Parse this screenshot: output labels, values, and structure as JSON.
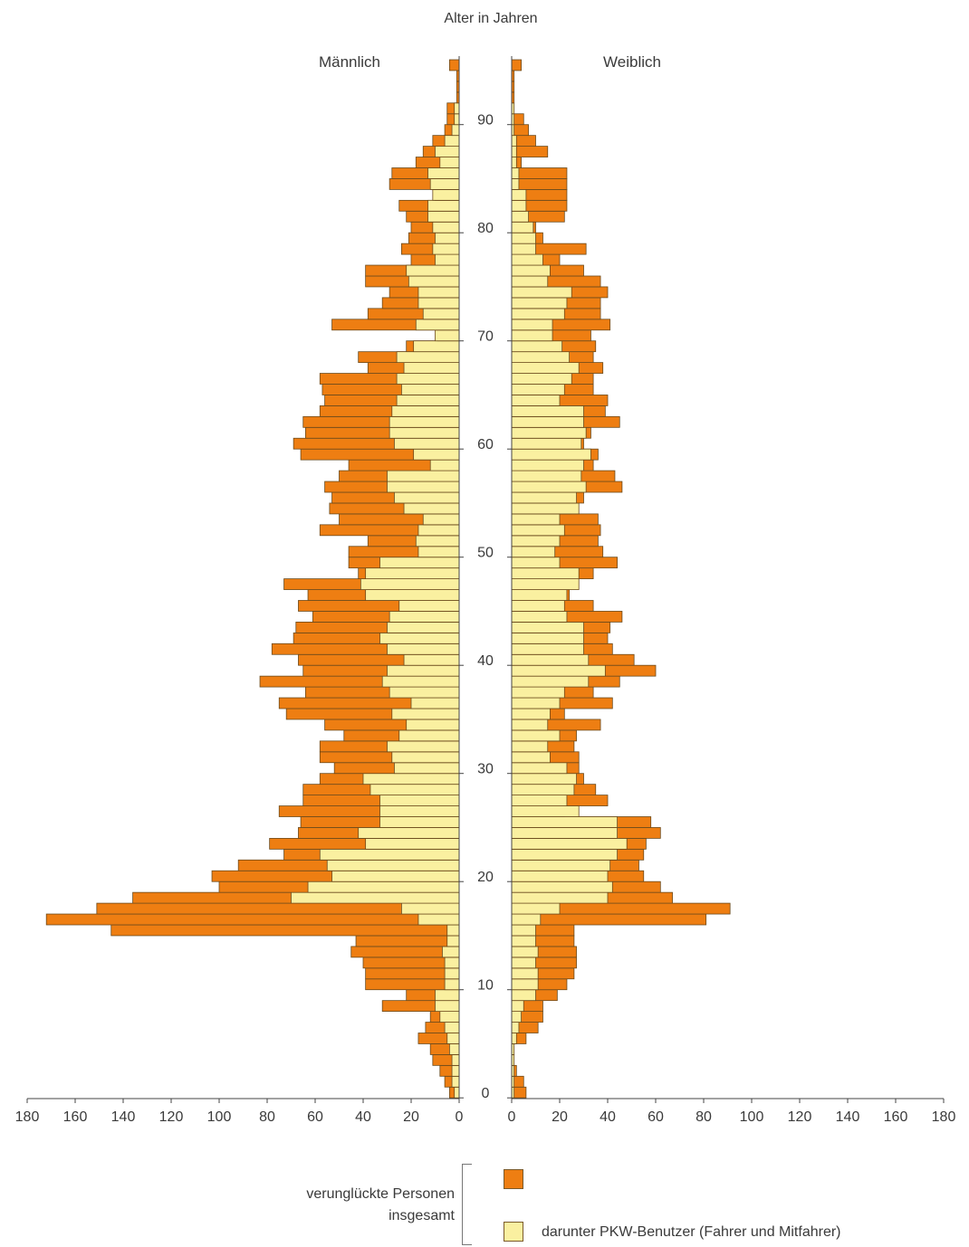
{
  "chart_data": {
    "type": "bar",
    "orientation": "horizontal-population-pyramid",
    "title": "Alter in Jahren",
    "left_label": "Männlich",
    "right_label": "Weiblich",
    "age_ticks": [
      "0",
      "10",
      "20",
      "30",
      "40",
      "50",
      "60",
      "70",
      "80",
      "90"
    ],
    "x_ticks": [
      "180",
      "160",
      "140",
      "120",
      "100",
      "80",
      "60",
      "40",
      "20",
      "0"
    ],
    "xlim": [
      0,
      180
    ],
    "ages": [
      0,
      1,
      2,
      3,
      4,
      5,
      6,
      7,
      8,
      9,
      10,
      11,
      12,
      13,
      14,
      15,
      16,
      17,
      18,
      19,
      20,
      21,
      22,
      23,
      24,
      25,
      26,
      27,
      28,
      29,
      30,
      31,
      32,
      33,
      34,
      35,
      36,
      37,
      38,
      39,
      40,
      41,
      42,
      43,
      44,
      45,
      46,
      47,
      48,
      49,
      50,
      51,
      52,
      53,
      54,
      55,
      56,
      57,
      58,
      59,
      60,
      61,
      62,
      63,
      64,
      65,
      66,
      67,
      68,
      69,
      70,
      71,
      72,
      73,
      74,
      75,
      76,
      77,
      78,
      79,
      80,
      81,
      82,
      83,
      84,
      85,
      86,
      87,
      88,
      89,
      90,
      91,
      92,
      93,
      94,
      95
    ],
    "series": [
      {
        "name": "verunglückte Personen insgesamt",
        "color": "#ee7e12",
        "male": [
          4,
          6,
          8,
          11,
          12,
          17,
          14,
          12,
          32,
          22,
          39,
          39,
          40,
          45,
          43,
          145,
          172,
          151,
          136,
          100,
          103,
          92,
          73,
          79,
          67,
          66,
          75,
          65,
          65,
          58,
          52,
          58,
          58,
          48,
          56,
          72,
          75,
          64,
          83,
          65,
          67,
          78,
          69,
          68,
          61,
          67,
          63,
          73,
          42,
          46,
          46,
          38,
          58,
          50,
          54,
          53,
          56,
          50,
          46,
          66,
          69,
          64,
          65,
          58,
          56,
          57,
          58,
          38,
          42,
          22,
          9,
          53,
          38,
          32,
          29,
          39,
          39,
          20,
          24,
          21,
          20,
          22,
          25,
          10,
          29,
          28,
          18,
          15,
          11,
          6,
          5,
          5,
          1,
          1,
          1,
          4
        ],
        "female": [
          6,
          5,
          2,
          1,
          1,
          6,
          11,
          13,
          13,
          19,
          23,
          26,
          27,
          27,
          26,
          26,
          81,
          91,
          67,
          62,
          55,
          53,
          55,
          56,
          62,
          58,
          22,
          40,
          35,
          30,
          28,
          28,
          26,
          27,
          37,
          22,
          42,
          34,
          45,
          60,
          51,
          42,
          40,
          41,
          46,
          34,
          24,
          24,
          34,
          44,
          38,
          36,
          37,
          36,
          25,
          30,
          46,
          43,
          34,
          36,
          30,
          33,
          45,
          39,
          40,
          34,
          34,
          38,
          34,
          35,
          33,
          41,
          37,
          37,
          40,
          37,
          30,
          20,
          31,
          13,
          10,
          22,
          23,
          23,
          23,
          23,
          4,
          15,
          10,
          7,
          5,
          1,
          1,
          1,
          1,
          4
        ]
      },
      {
        "name": "darunter PKW-Benutzer (Fahrer und Mitfahrer)",
        "color": "#faf0a0",
        "male": [
          2,
          3,
          3,
          3,
          4,
          5,
          6,
          8,
          10,
          10,
          6,
          6,
          6,
          7,
          5,
          5,
          17,
          24,
          70,
          63,
          53,
          55,
          58,
          39,
          42,
          33,
          33,
          33,
          37,
          40,
          27,
          28,
          30,
          25,
          22,
          28,
          20,
          29,
          32,
          30,
          23,
          30,
          33,
          30,
          29,
          25,
          39,
          41,
          39,
          33,
          17,
          18,
          17,
          15,
          23,
          27,
          30,
          30,
          12,
          19,
          27,
          29,
          29,
          28,
          26,
          24,
          26,
          23,
          26,
          19,
          10,
          18,
          15,
          17,
          17,
          21,
          22,
          10,
          11,
          10,
          11,
          13,
          13,
          11,
          12,
          13,
          8,
          10,
          6,
          3,
          2,
          2,
          0,
          0,
          0,
          0
        ],
        "female": [
          1,
          1,
          1,
          1,
          1,
          2,
          3,
          4,
          5,
          10,
          11,
          11,
          10,
          11,
          10,
          10,
          12,
          20,
          40,
          42,
          40,
          41,
          44,
          48,
          44,
          44,
          28,
          23,
          26,
          27,
          23,
          16,
          15,
          20,
          15,
          16,
          20,
          22,
          32,
          39,
          32,
          30,
          30,
          30,
          23,
          22,
          23,
          28,
          28,
          20,
          18,
          20,
          22,
          20,
          28,
          27,
          31,
          29,
          30,
          33,
          29,
          31,
          30,
          30,
          20,
          22,
          25,
          28,
          24,
          21,
          17,
          17,
          22,
          23,
          25,
          15,
          16,
          13,
          10,
          10,
          9,
          7,
          6,
          6,
          3,
          3,
          2,
          2,
          2,
          1,
          1,
          1,
          0,
          0,
          0,
          0
        ]
      }
    ]
  },
  "legend": {
    "caption_line1": "verunglückte Personen",
    "caption_line2": "insgesamt",
    "car_label": "darunter PKW-Benutzer (Fahrer und Mitfahrer)"
  }
}
